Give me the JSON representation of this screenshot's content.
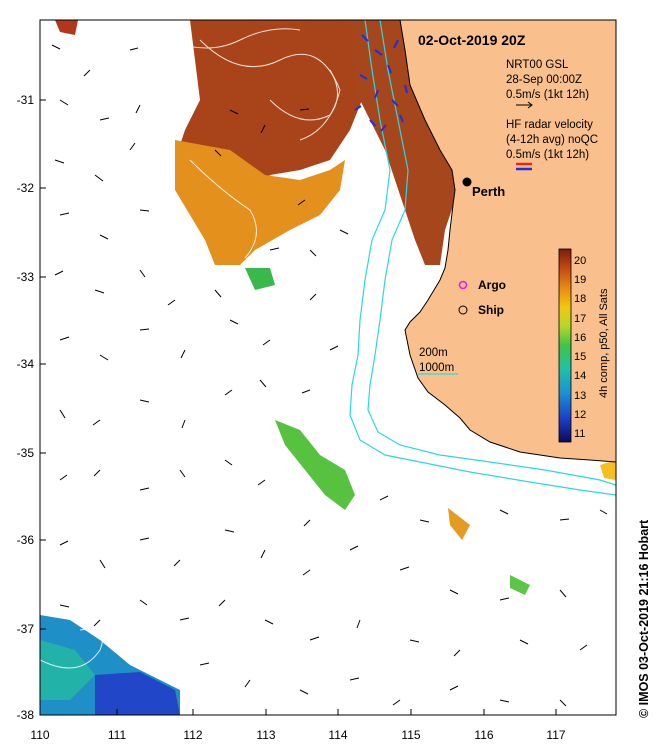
{
  "map": {
    "title": "02-Oct-2019 20Z",
    "lat_labels": [
      "-31",
      "-32",
      "-33",
      "-34",
      "-35",
      "-36",
      "-37",
      "-38"
    ],
    "lon_labels": [
      "110",
      "111",
      "112",
      "113",
      "114",
      "115",
      "116",
      "117"
    ],
    "lat_range": [
      -38,
      -30.2
    ],
    "lon_range": [
      110,
      117.8
    ]
  },
  "legend": {
    "gsl_title": "NRT00 GSL",
    "gsl_time": "28-Sep 00:00Z",
    "gsl_scale": "0.5m/s (1kt 12h)",
    "hf_title": "HF radar velocity",
    "hf_avg": "(4-12h avg) noQC",
    "hf_scale": "0.5m/s (1kt 12h)"
  },
  "places": {
    "city": "Perth",
    "argo": "Argo",
    "ship": "Ship"
  },
  "contours": {
    "c200": "200m",
    "c1000": "1000m"
  },
  "colorbar": {
    "ticks": [
      "20",
      "19",
      "18",
      "17",
      "16",
      "15",
      "14",
      "13",
      "12",
      "11"
    ],
    "title": "4h comp, p50, All Sats",
    "range": [
      10.5,
      20.5
    ]
  },
  "credit": "© IMOS 03-Oct-2019 21:16 Hobart",
  "colors": {
    "land": "#f9c08d",
    "bathy": "#2ad9e0",
    "hf_red": "#e8261d",
    "hf_blue": "#1d2ee8"
  }
}
